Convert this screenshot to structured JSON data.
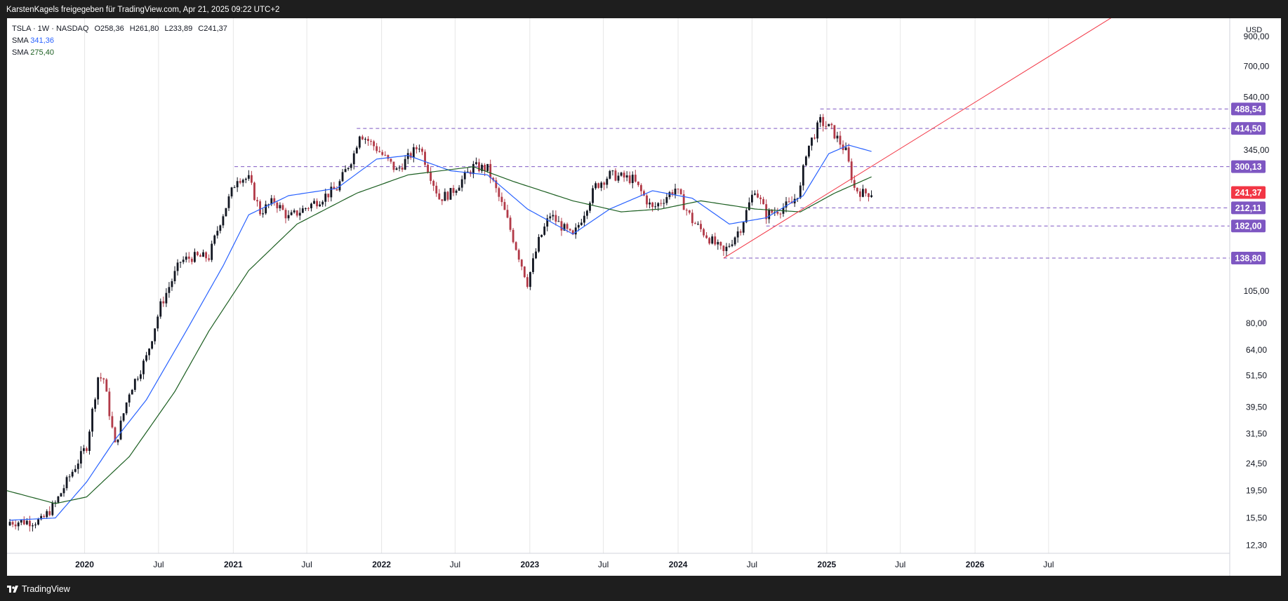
{
  "header": {
    "title": "KarstenKagels freigegeben für TradingView.com, Apr 21, 2025 09:22 UTC+2"
  },
  "footer": {
    "brand": "TradingView"
  },
  "legend": {
    "symbol": "TSLA · 1W · NASDAQ",
    "open_label": "O",
    "open": "258,36",
    "high_label": "H",
    "high": "261,80",
    "low_label": "L",
    "low": "233,89",
    "close_label": "C",
    "close": "241,37",
    "sma1_label": "SMA",
    "sma1_value": "341,36",
    "sma2_label": "SMA",
    "sma2_value": "275,40"
  },
  "chart_data": {
    "type": "candlestick",
    "currency": "USD",
    "y_scale": "log",
    "ylim": [
      11.5,
      1050
    ],
    "xlim": [
      "2019-06-24",
      "2027-09-20"
    ],
    "y_ticks": [
      "900,00",
      "700,00",
      "540,00",
      "345,00",
      "105,00",
      "80,00",
      "64,00",
      "51,50",
      "39,50",
      "31,50",
      "24,50",
      "19,50",
      "15,50",
      "12,30"
    ],
    "x_ticks": [
      {
        "label": "2020",
        "date": "2020-01-01",
        "bold": true
      },
      {
        "label": "Jul",
        "date": "2020-07-01"
      },
      {
        "label": "2021",
        "date": "2021-01-01",
        "bold": true
      },
      {
        "label": "Jul",
        "date": "2021-07-01"
      },
      {
        "label": "2022",
        "date": "2022-01-01",
        "bold": true
      },
      {
        "label": "Jul",
        "date": "2022-07-01"
      },
      {
        "label": "2023",
        "date": "2023-01-01",
        "bold": true
      },
      {
        "label": "Jul",
        "date": "2023-07-01"
      },
      {
        "label": "2024",
        "date": "2024-01-01",
        "bold": true
      },
      {
        "label": "Jul",
        "date": "2024-07-01"
      },
      {
        "label": "2025",
        "date": "2025-01-01",
        "bold": true
      },
      {
        "label": "Jul",
        "date": "2025-07-01"
      },
      {
        "label": "2026",
        "date": "2026-01-01",
        "bold": true
      },
      {
        "label": "Jul",
        "date": "2026-07-01"
      }
    ],
    "close_anchors": [
      [
        "2019-07-01",
        15.0
      ],
      [
        "2019-09-16",
        15.1
      ],
      [
        "2019-10-21",
        17.5
      ],
      [
        "2019-11-25",
        22.0
      ],
      [
        "2020-01-06",
        28.5
      ],
      [
        "2020-02-03",
        51.0
      ],
      [
        "2020-02-17",
        50.0
      ],
      [
        "2020-03-16",
        28.5
      ],
      [
        "2020-04-20",
        45.0
      ],
      [
        "2020-06-01",
        60.0
      ],
      [
        "2020-07-06",
        93.0
      ],
      [
        "2020-08-24",
        135.0
      ],
      [
        "2020-09-21",
        140.0
      ],
      [
        "2020-11-02",
        140.0
      ],
      [
        "2020-11-30",
        190.0
      ],
      [
        "2021-01-11",
        275.0
      ],
      [
        "2021-02-08",
        270.0
      ],
      [
        "2021-03-08",
        205.0
      ],
      [
        "2021-04-12",
        225.0
      ],
      [
        "2021-05-17",
        195.0
      ],
      [
        "2021-07-05",
        215.0
      ],
      [
        "2021-09-13",
        250.0
      ],
      [
        "2021-10-25",
        335.0
      ],
      [
        "2021-11-08",
        400.0
      ],
      [
        "2021-12-20",
        350.0
      ],
      [
        "2022-02-07",
        290.0
      ],
      [
        "2022-04-04",
        360.0
      ],
      [
        "2022-05-23",
        230.0
      ],
      [
        "2022-06-20",
        240.0
      ],
      [
        "2022-08-15",
        300.0
      ],
      [
        "2022-09-19",
        295.0
      ],
      [
        "2022-10-31",
        205.0
      ],
      [
        "2022-12-26",
        113.0
      ],
      [
        "2023-01-23",
        160.0
      ],
      [
        "2023-02-20",
        200.0
      ],
      [
        "2023-04-17",
        165.0
      ],
      [
        "2023-06-12",
        255.0
      ],
      [
        "2023-07-17",
        280.0
      ],
      [
        "2023-09-11",
        270.0
      ],
      [
        "2023-10-30",
        210.0
      ],
      [
        "2023-12-25",
        250.0
      ],
      [
        "2024-02-05",
        190.0
      ],
      [
        "2024-04-22",
        145.0
      ],
      [
        "2024-06-03",
        180.0
      ],
      [
        "2024-07-08",
        250.0
      ],
      [
        "2024-08-05",
        200.0
      ],
      [
        "2024-10-07",
        220.0
      ],
      [
        "2024-10-28",
        250.0
      ],
      [
        "2024-11-11",
        340.0
      ],
      [
        "2024-12-16",
        440.0
      ],
      [
        "2025-01-13",
        410.0
      ],
      [
        "2025-02-17",
        340.0
      ],
      [
        "2025-03-10",
        250.0
      ],
      [
        "2025-03-31",
        240.0
      ],
      [
        "2025-04-21",
        241.37
      ]
    ],
    "series": [
      {
        "name": "SMA",
        "color": "#2962ff",
        "anchors": [
          [
            "2019-07-01",
            15.2
          ],
          [
            "2019-10-21",
            15.5
          ],
          [
            "2020-01-06",
            21.0
          ],
          [
            "2020-03-16",
            30.0
          ],
          [
            "2020-06-01",
            42.0
          ],
          [
            "2020-09-07",
            75.0
          ],
          [
            "2020-12-07",
            130.0
          ],
          [
            "2021-02-08",
            200.0
          ],
          [
            "2021-05-17",
            235.0
          ],
          [
            "2021-09-13",
            250.0
          ],
          [
            "2021-12-20",
            320.0
          ],
          [
            "2022-03-07",
            330.0
          ],
          [
            "2022-06-20",
            290.0
          ],
          [
            "2022-09-19",
            280.0
          ],
          [
            "2022-12-26",
            210.0
          ],
          [
            "2023-04-17",
            170.0
          ],
          [
            "2023-07-17",
            210.0
          ],
          [
            "2023-10-30",
            245.0
          ],
          [
            "2024-02-05",
            230.0
          ],
          [
            "2024-05-06",
            185.0
          ],
          [
            "2024-08-05",
            195.0
          ],
          [
            "2024-11-04",
            235.0
          ],
          [
            "2025-01-06",
            335.0
          ],
          [
            "2025-02-24",
            360.0
          ],
          [
            "2025-04-21",
            341.36
          ]
        ]
      },
      {
        "name": "SMA",
        "color": "#1b5e20",
        "anchors": [
          [
            "2019-06-24",
            19.5
          ],
          [
            "2019-10-21",
            17.5
          ],
          [
            "2020-01-06",
            18.5
          ],
          [
            "2020-04-20",
            26.0
          ],
          [
            "2020-08-10",
            45.0
          ],
          [
            "2020-11-02",
            75.0
          ],
          [
            "2021-02-08",
            125.0
          ],
          [
            "2021-06-07",
            185.0
          ],
          [
            "2021-11-01",
            240.0
          ],
          [
            "2022-03-07",
            280.0
          ],
          [
            "2022-08-15",
            300.0
          ],
          [
            "2022-11-21",
            265.0
          ],
          [
            "2023-04-17",
            225.0
          ],
          [
            "2023-08-14",
            205.0
          ],
          [
            "2023-11-20",
            210.0
          ],
          [
            "2024-02-26",
            225.0
          ],
          [
            "2024-07-08",
            210.0
          ],
          [
            "2024-10-28",
            205.0
          ],
          [
            "2025-01-20",
            240.0
          ],
          [
            "2025-04-21",
            275.4
          ]
        ]
      }
    ],
    "horizontal_levels": [
      {
        "value": 488.54,
        "label": "488,54",
        "from": "2024-12-16",
        "color": "#7e57c2"
      },
      {
        "value": 414.5,
        "label": "414,50",
        "from": "2021-11-01",
        "color": "#7e57c2"
      },
      {
        "value": 300.13,
        "label": "300,13",
        "from": "2021-01-04",
        "color": "#7e57c2"
      },
      {
        "value": 212.11,
        "label": "212,11",
        "from": "2024-10-28",
        "color": "#7e57c2"
      },
      {
        "value": 182.0,
        "label": "182,00",
        "from": "2024-08-05",
        "color": "#7e57c2"
      },
      {
        "value": 138.8,
        "label": "138,80",
        "from": "2024-04-22",
        "color": "#7e57c2"
      }
    ],
    "current_price": {
      "value": 241.37,
      "label": "241,37",
      "color": "#f23645"
    },
    "trendline": {
      "color": "#f23645",
      "p1": [
        "2024-04-22",
        138.8
      ],
      "p2": [
        "2025-03-03",
        271.0
      ]
    },
    "colors": {
      "up": "#131722",
      "down": "#b23a48",
      "grid": "#e6e6e6",
      "axis_text": "#131722"
    }
  }
}
